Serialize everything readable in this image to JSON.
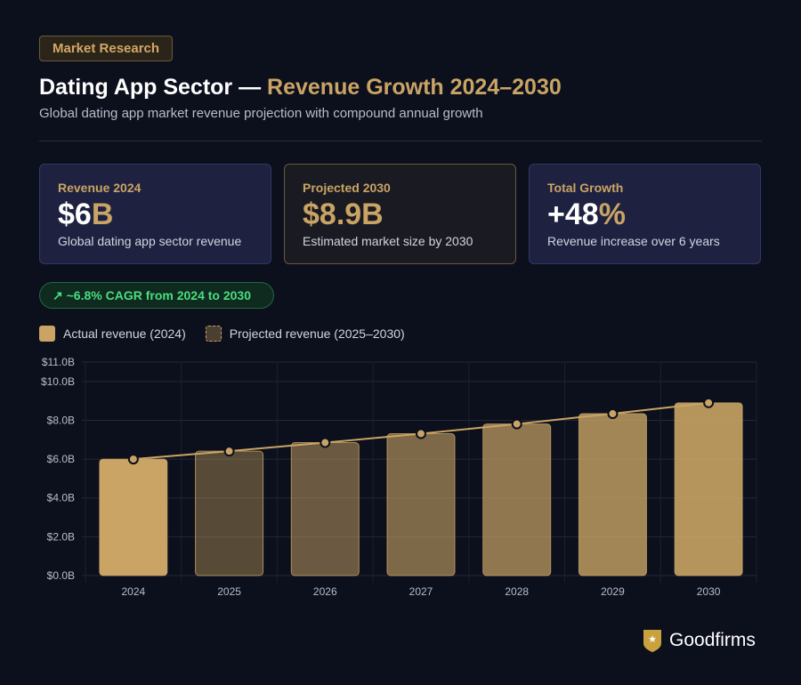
{
  "badge": "Market Research",
  "title": {
    "main": "Dating App Sector — ",
    "accent": "Revenue Growth 2024–2030"
  },
  "subtitle": "Global dating app market revenue projection with compound annual growth",
  "cards": [
    {
      "label": "Revenue 2024",
      "value_main": "$6",
      "value_accent": "B",
      "desc": "Global dating app sector revenue"
    },
    {
      "label": "Projected 2030",
      "value_main": "",
      "value_accent": "$8.9B",
      "desc": "Estimated market size by 2030"
    },
    {
      "label": "Total Growth",
      "value_main": "+48",
      "value_accent": "%",
      "desc": "Revenue increase over 6 years"
    }
  ],
  "cagr": "~6.8% CAGR from 2024 to 2030",
  "legend": {
    "actual": "Actual revenue (2024)",
    "projected": "Projected revenue (2025–2030)"
  },
  "brand": "Goodfirms",
  "colors": {
    "accent": "#c9a465",
    "green": "#4ade80",
    "bg": "#0c0f1c"
  },
  "chart_data": {
    "type": "bar",
    "categories": [
      "2024",
      "2025",
      "2026",
      "2027",
      "2028",
      "2029",
      "2030"
    ],
    "values": [
      6.0,
      6.41,
      6.85,
      7.31,
      7.81,
      8.34,
      8.9
    ],
    "series_types": [
      "actual",
      "projected",
      "projected",
      "projected",
      "projected",
      "projected",
      "projected"
    ],
    "line_overlay": true,
    "yticks": [
      0,
      2,
      4,
      6,
      8,
      10,
      11
    ],
    "ytick_labels": [
      "$0.0B",
      "$2.0B",
      "$4.0B",
      "$6.0B",
      "$8.0B",
      "$10.0B",
      "$11.0B"
    ],
    "ylim": [
      0,
      11
    ],
    "grid": true
  }
}
